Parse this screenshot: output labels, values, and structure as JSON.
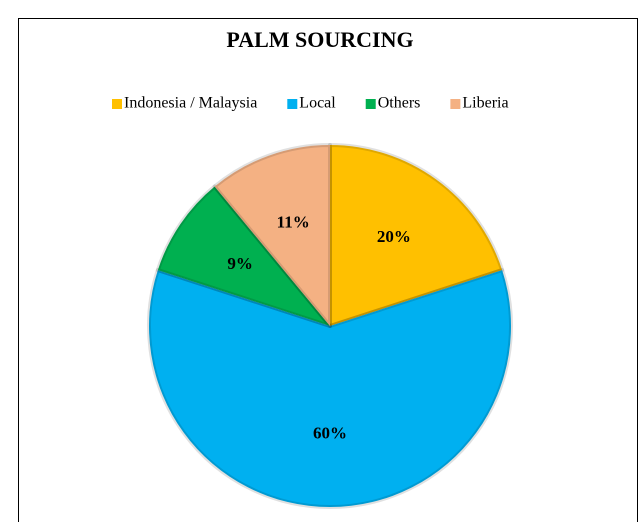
{
  "chart_data": {
    "type": "pie",
    "title": "PALM SOURCING",
    "categories": [
      "Indonesia / Malaysia",
      "Local",
      "Others",
      "Liberia"
    ],
    "values": [
      20,
      60,
      9,
      11
    ],
    "value_labels": [
      "20%",
      "60%",
      "9%",
      "11%"
    ],
    "colors": [
      "#FFC000",
      "#00B0F0",
      "#00B050",
      "#F4B183"
    ],
    "legend": "top"
  }
}
